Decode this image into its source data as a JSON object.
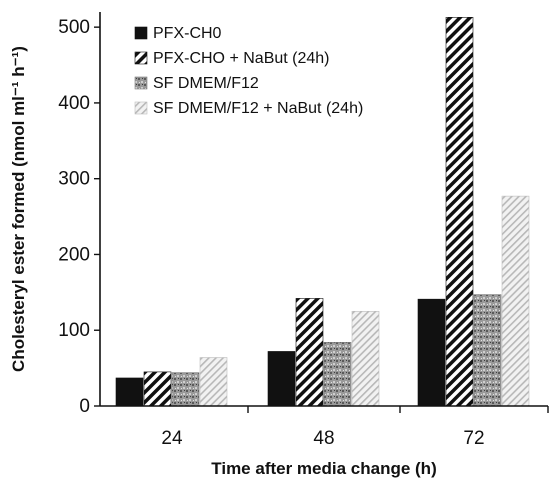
{
  "chart_data": {
    "type": "bar",
    "categories": [
      "24",
      "48",
      "72"
    ],
    "series": [
      {
        "name": "PFX-CH0",
        "values": [
          37,
          72,
          141
        ],
        "pattern": "solid"
      },
      {
        "name": "PFX-CHO + NaBut (24h)",
        "values": [
          45,
          142,
          513
        ],
        "pattern": "diagonal"
      },
      {
        "name": "SF DMEM/F12",
        "values": [
          44,
          84,
          147
        ],
        "pattern": "speckle"
      },
      {
        "name": "SF DMEM/F12 + NaBut (24h)",
        "values": [
          64,
          125,
          277
        ],
        "pattern": "light-diagonal"
      }
    ],
    "xlabel": "Time after media change (h)",
    "ylabel": "Cholesteryl ester formed (nmol ml⁻¹ h⁻¹)",
    "ylim": [
      0,
      520
    ],
    "yticks": [
      0,
      100,
      200,
      300,
      400,
      500
    ],
    "grid": false,
    "legend": "top-left",
    "colors": {
      "bar_dark": "#111111",
      "speckle_gray": "#8c8c8c",
      "light_hatch": "#d0d0d0"
    }
  }
}
